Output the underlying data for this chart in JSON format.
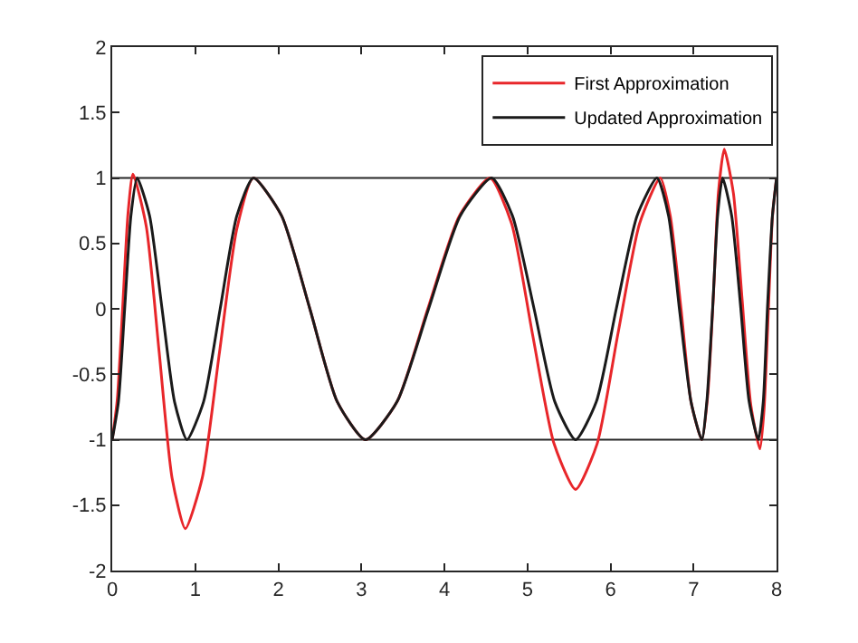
{
  "chart_data": {
    "type": "line",
    "xlim": [
      0,
      8
    ],
    "ylim": [
      -2,
      2
    ],
    "xticks": [
      0,
      1,
      2,
      3,
      4,
      5,
      6,
      7,
      8
    ],
    "yticks": [
      -2,
      {
        "value": -1.5,
        "label": "-1.5"
      },
      -1,
      {
        "value": -0.5,
        "label": "-0.5"
      },
      0,
      0.5,
      1,
      1.5,
      2
    ],
    "grid": false,
    "legend": "top right",
    "marker": "none",
    "line_style": "solid",
    "ref_lines": [
      {
        "axis": "y",
        "value": 1,
        "color": "#262626"
      },
      {
        "axis": "y",
        "value": -1,
        "color": "#262626"
      }
    ],
    "series": [
      {
        "name": "First Approximation",
        "color": "#e8262a",
        "x": [
          0,
          0.06,
          0.125,
          0.19,
          0.25,
          0.41,
          0.565,
          0.72,
          0.88,
          1.085,
          1.29,
          1.5,
          1.7,
          2.04,
          2.38,
          2.71,
          3.05,
          3.43,
          3.8,
          4.18,
          4.55,
          4.81,
          5.06,
          5.32,
          5.58,
          5.84,
          6.09,
          6.35,
          6.6,
          6.72,
          6.85,
          6.97,
          7.1,
          7.17,
          7.24,
          7.3,
          7.37,
          7.48,
          7.585,
          7.69,
          7.8,
          7.85,
          7.9,
          7.95,
          8
        ],
        "values": [
          -1,
          -0.7,
          0,
          0.73,
          1.03,
          0.63,
          -0.33,
          -1.29,
          -1.68,
          -1.29,
          -0.34,
          0.61,
          1,
          0.71,
          0,
          -0.71,
          -1,
          -0.71,
          0,
          0.71,
          1,
          0.65,
          -0.19,
          -1.03,
          -1.38,
          -1.03,
          -0.19,
          0.65,
          1,
          0.71,
          0,
          -0.71,
          -1,
          -0.67,
          0.11,
          0.89,
          1.22,
          0.885,
          0.075,
          -0.735,
          -1.07,
          -0.765,
          -0.035,
          0.7,
          1
        ]
      },
      {
        "name": "Updated Approximation",
        "color": "#1a1a1a",
        "x": [
          0,
          0.075,
          0.15,
          0.225,
          0.3,
          0.45,
          0.6,
          0.75,
          0.9,
          1.1,
          1.3,
          1.5,
          1.7,
          2.04,
          2.38,
          2.71,
          3.05,
          3.43,
          3.81,
          4.19,
          4.57,
          4.82,
          5.08,
          5.33,
          5.58,
          5.83,
          6.07,
          6.32,
          6.56,
          6.7,
          6.83,
          6.97,
          7.1,
          7.16,
          7.23,
          7.29,
          7.35,
          7.46,
          7.57,
          7.67,
          7.78,
          7.84,
          7.89,
          7.95,
          8
        ],
        "values": [
          -1,
          -0.71,
          0,
          0.71,
          1,
          0.71,
          0,
          -0.71,
          -1,
          -0.71,
          0,
          0.71,
          1,
          0.71,
          0,
          -0.71,
          -1,
          -0.71,
          0,
          0.71,
          1,
          0.71,
          0,
          -0.71,
          -1,
          -0.71,
          0,
          0.71,
          1,
          0.71,
          0,
          -0.71,
          -1,
          -0.71,
          0,
          0.71,
          1,
          0.71,
          0,
          -0.71,
          -1,
          -0.71,
          0,
          0.71,
          1
        ]
      }
    ]
  }
}
